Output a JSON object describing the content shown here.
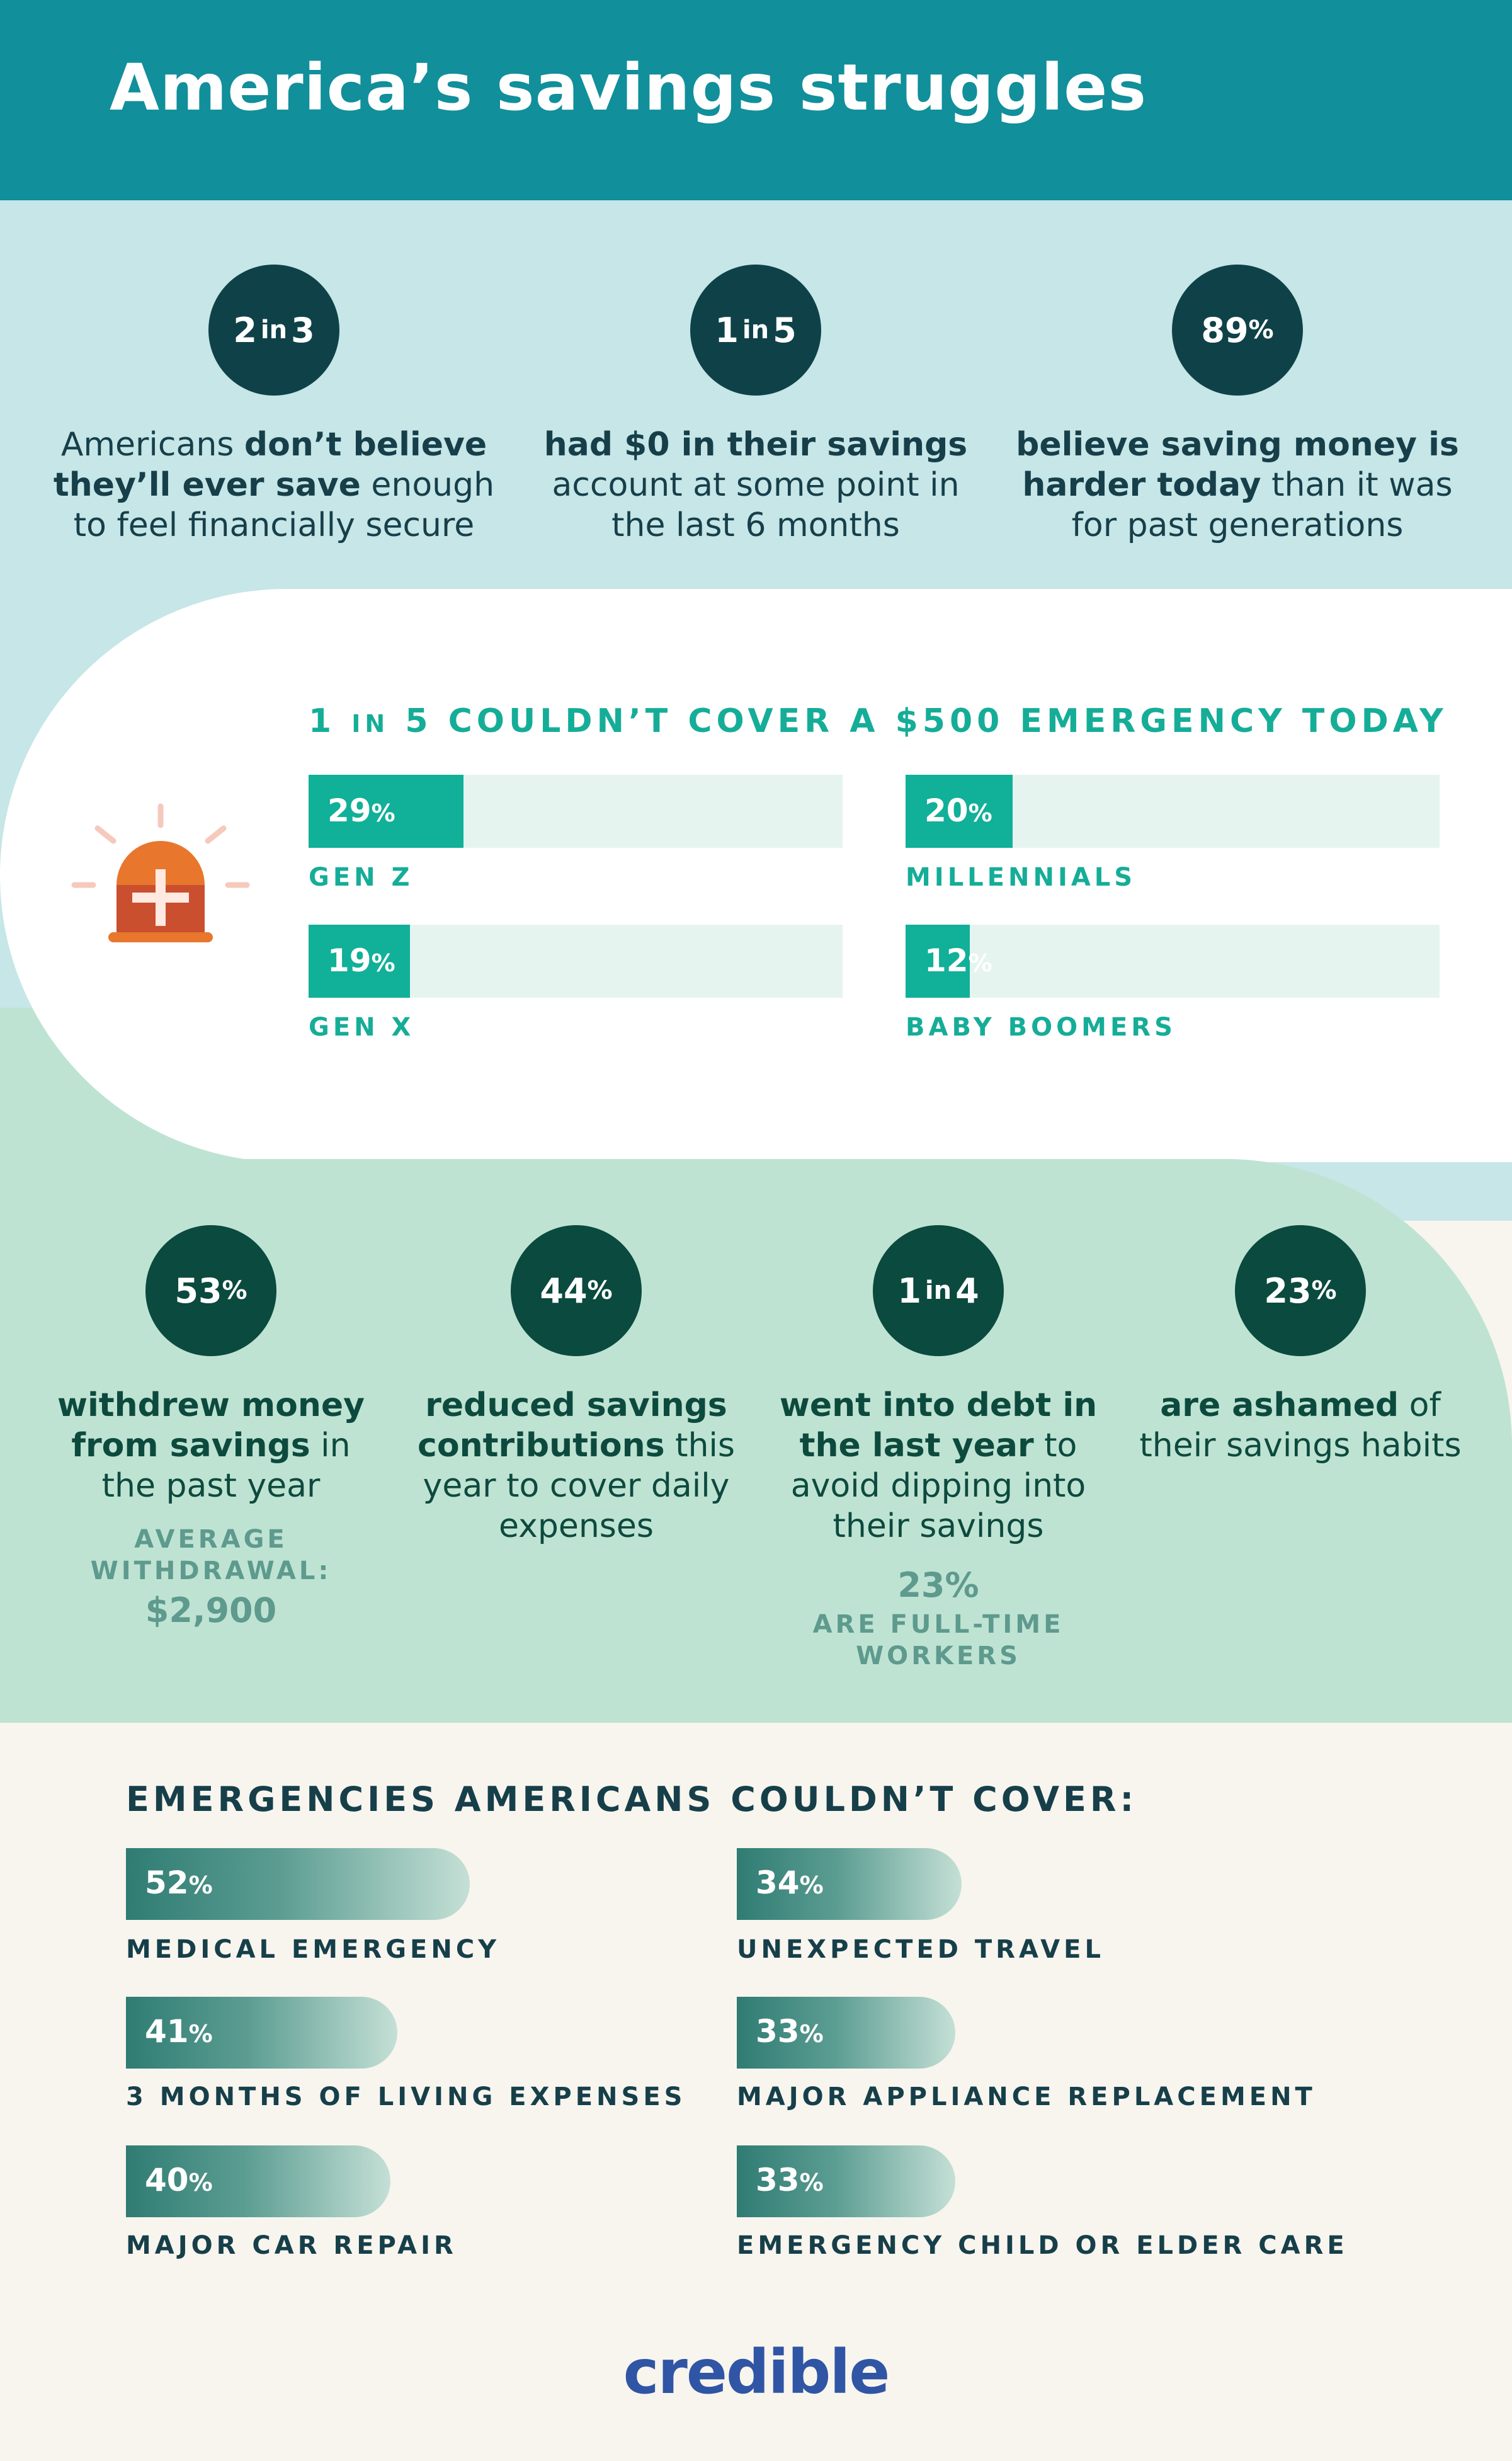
{
  "title": "America’s savings struggles",
  "top_stats": [
    {
      "num": "2",
      "mid": "in",
      "num2": "3",
      "pre": "Americans ",
      "bold": "don’t believe they’ll ever save",
      "post": " enough to feel financially secure"
    },
    {
      "num": "1",
      "mid": "in",
      "num2": "5",
      "pre": "",
      "bold": "had $0 in their savings",
      "post": " account at some point in the last 6 months"
    },
    {
      "num": "89",
      "mid": "%",
      "num2": "",
      "pre": "",
      "bold": "believe saving money is harder today",
      "post": " than it was for past generations"
    }
  ],
  "chart_data": [
    {
      "type": "bar",
      "title": "1 IN 5 COULDN’T COVER A $500 EMERGENCY TODAY",
      "title_parts": {
        "a": "1",
        "b": "IN",
        "c": "5 COULDN’T COVER A $500 EMERGENCY TODAY"
      },
      "categories": [
        "GEN Z",
        "MILLENNIALS",
        "GEN X",
        "BABY BOOMERS"
      ],
      "values": [
        29,
        20,
        19,
        12
      ],
      "unit": "%",
      "ylim": [
        0,
        100
      ],
      "color": "#11b098"
    },
    {
      "type": "bar",
      "title": "EMERGENCIES AMERICANS COULDN’T COVER:",
      "categories": [
        "MEDICAL EMERGENCY",
        "UNEXPECTED TRAVEL",
        "3 MONTHS OF LIVING EXPENSES",
        "MAJOR APPLIANCE REPLACEMENT",
        "MAJOR CAR REPAIR",
        "EMERGENCY CHILD OR ELDER CARE"
      ],
      "values": [
        52,
        34,
        41,
        33,
        40,
        33
      ],
      "unit": "%",
      "color": "#2f7c73"
    }
  ],
  "bottom_stats": [
    {
      "num": "53",
      "mid": "%",
      "num2": "",
      "bold": "withdrew money from savings",
      "post": " in the past year",
      "sub_label": "AVERAGE WITHDRAWAL:",
      "sub_value": "$2,900"
    },
    {
      "num": "44",
      "mid": "%",
      "num2": "",
      "bold": "reduced savings contributions",
      "post": " this year to cover daily expenses",
      "sub_label": "",
      "sub_value": ""
    },
    {
      "num": "1",
      "mid": "in",
      "num2": "4",
      "bold": "went into debt in the last year",
      "post": " to avoid dipping into their savings",
      "sub_value_top": "23%",
      "sub_label": "ARE FULL-TIME WORKERS"
    },
    {
      "num": "23",
      "mid": "%",
      "num2": "",
      "bold": "are ashamed",
      "post": " of their savings habits",
      "sub_label": "",
      "sub_value": ""
    }
  ],
  "icons": {
    "emergency": "emergency-siren-icon"
  },
  "colors": {
    "header": "#118f9a",
    "teal_bar": "#11b098",
    "dark_circle": "#0f4248",
    "logo": "#2f55a4"
  },
  "logo": "credible"
}
